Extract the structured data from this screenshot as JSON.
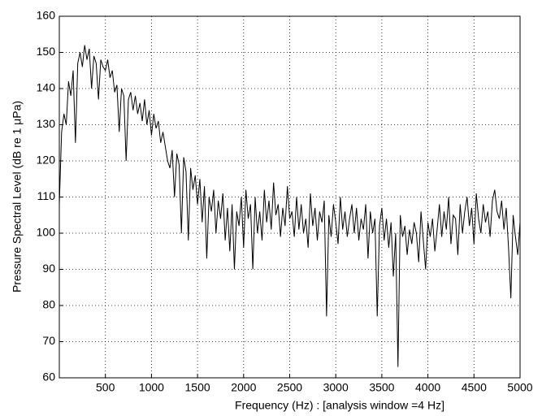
{
  "chart_data": {
    "type": "line",
    "xlabel": "Frequency (Hz) : [analysis window =4 Hz]",
    "ylabel": "Pressure Spectral Level (dB re 1 μPa)",
    "color": "#000000",
    "grid": true,
    "xlim": [
      0,
      5000
    ],
    "ylim": [
      60,
      160
    ],
    "xticks": [
      500,
      1000,
      1500,
      2000,
      2500,
      3000,
      3500,
      4000,
      4500,
      5000
    ],
    "yticks": [
      60,
      70,
      80,
      90,
      100,
      110,
      120,
      130,
      140,
      150,
      160
    ],
    "x": [
      0,
      25,
      50,
      75,
      100,
      125,
      150,
      175,
      200,
      225,
      250,
      275,
      300,
      325,
      350,
      375,
      400,
      425,
      450,
      475,
      500,
      525,
      550,
      575,
      600,
      625,
      650,
      675,
      700,
      725,
      750,
      775,
      800,
      825,
      850,
      875,
      900,
      925,
      950,
      975,
      1000,
      1025,
      1050,
      1075,
      1100,
      1125,
      1150,
      1175,
      1200,
      1225,
      1250,
      1275,
      1300,
      1325,
      1350,
      1375,
      1400,
      1425,
      1450,
      1475,
      1500,
      1525,
      1550,
      1575,
      1600,
      1625,
      1650,
      1675,
      1700,
      1725,
      1750,
      1775,
      1800,
      1825,
      1850,
      1875,
      1900,
      1925,
      1950,
      1975,
      2000,
      2025,
      2050,
      2075,
      2100,
      2125,
      2150,
      2175,
      2200,
      2225,
      2250,
      2275,
      2300,
      2325,
      2350,
      2375,
      2400,
      2425,
      2450,
      2475,
      2500,
      2525,
      2550,
      2575,
      2600,
      2625,
      2650,
      2675,
      2700,
      2725,
      2750,
      2775,
      2800,
      2825,
      2850,
      2875,
      2900,
      2925,
      2950,
      2975,
      3000,
      3025,
      3050,
      3075,
      3100,
      3125,
      3150,
      3175,
      3200,
      3225,
      3250,
      3275,
      3300,
      3325,
      3350,
      3375,
      3400,
      3425,
      3450,
      3475,
      3500,
      3525,
      3550,
      3575,
      3600,
      3625,
      3650,
      3675,
      3700,
      3725,
      3750,
      3775,
      3800,
      3825,
      3850,
      3875,
      3900,
      3925,
      3950,
      3975,
      4000,
      4025,
      4050,
      4075,
      4100,
      4125,
      4150,
      4175,
      4200,
      4225,
      4250,
      4275,
      4300,
      4325,
      4350,
      4375,
      4400,
      4425,
      4450,
      4475,
      4500,
      4525,
      4550,
      4575,
      4600,
      4625,
      4650,
      4675,
      4700,
      4725,
      4750,
      4775,
      4800,
      4825,
      4850,
      4875,
      4900,
      4925,
      4950,
      4975,
      5000
    ],
    "values": [
      108,
      128,
      133,
      130,
      142,
      138,
      145,
      125,
      147,
      150,
      146,
      152,
      148,
      151,
      140,
      149,
      147,
      137,
      148,
      146,
      145,
      148,
      143,
      145,
      139,
      141,
      128,
      140,
      138,
      120,
      137,
      139,
      134,
      138,
      133,
      136,
      131,
      137,
      130,
      134,
      127,
      133,
      129,
      131,
      125,
      128,
      124,
      120,
      118,
      123,
      110,
      122,
      119,
      100,
      121,
      117,
      98,
      118,
      112,
      116,
      108,
      115,
      103,
      113,
      93,
      110,
      106,
      112,
      100,
      109,
      104,
      111,
      98,
      107,
      95,
      108,
      90,
      106,
      102,
      110,
      96,
      112,
      104,
      108,
      90,
      110,
      100,
      106,
      98,
      112,
      103,
      109,
      101,
      114,
      105,
      108,
      99,
      107,
      102,
      113,
      104,
      106,
      99,
      110,
      101,
      108,
      100,
      104,
      96,
      111,
      102,
      107,
      98,
      106,
      103,
      109,
      77,
      105,
      99,
      108,
      103,
      97,
      110,
      101,
      106,
      99,
      104,
      108,
      100,
      107,
      98,
      104,
      101,
      108,
      93,
      106,
      100,
      104,
      77,
      102,
      107,
      98,
      104,
      96,
      103,
      88,
      100,
      63,
      105,
      99,
      102,
      94,
      101,
      97,
      103,
      100,
      92,
      106,
      98,
      90,
      103,
      99,
      104,
      95,
      101,
      108,
      99,
      106,
      101,
      110,
      97,
      105,
      104,
      94,
      108,
      100,
      106,
      110,
      102,
      107,
      97,
      111,
      104,
      100,
      108,
      103,
      106,
      99,
      109,
      112,
      106,
      104,
      109,
      101,
      107,
      96,
      82,
      105,
      99,
      94,
      103
    ]
  }
}
